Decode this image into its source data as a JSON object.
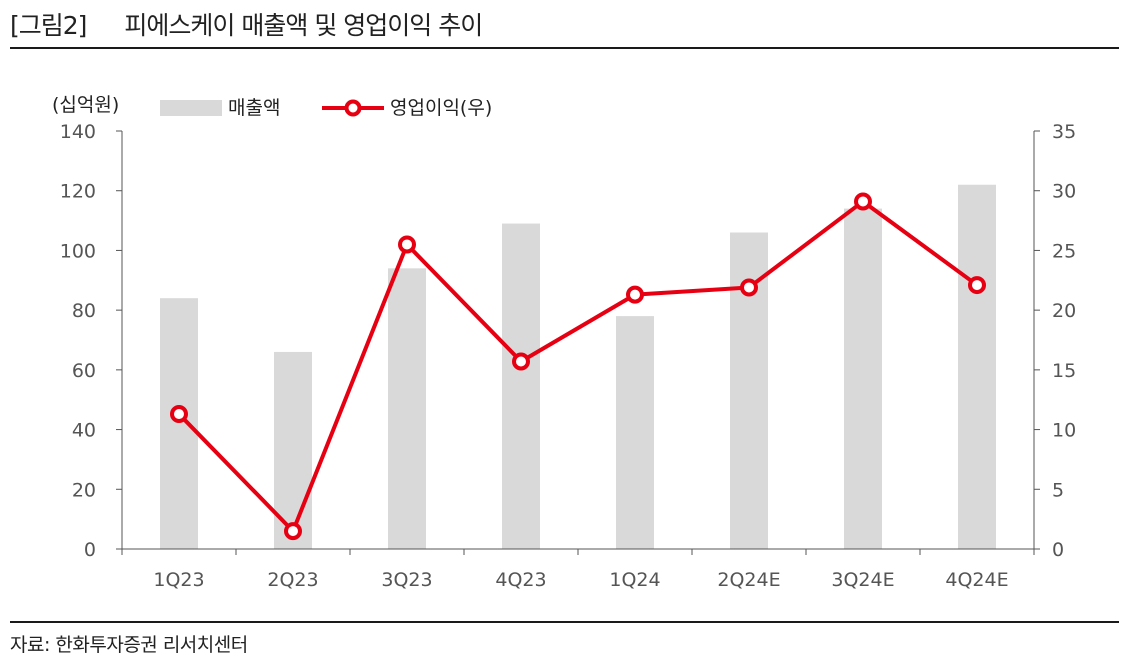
{
  "header": {
    "fig_tag": "[그림2]",
    "title": "피에스케이 매출액 및 영업이익 추이"
  },
  "source": "자료: 한화투자증권 리서치센터",
  "colors": {
    "bar": "#d9d9d9",
    "line": "#e60012",
    "axis": "#555555",
    "rule": "#1a1a1a"
  },
  "chart_data": {
    "type": "bar",
    "categories": [
      "1Q23",
      "2Q23",
      "3Q23",
      "4Q23",
      "1Q24",
      "2Q24E",
      "3Q24E",
      "4Q24E"
    ],
    "series": [
      {
        "name": "매출액",
        "type": "bar",
        "axis": "left",
        "values": [
          84,
          66,
          94,
          109,
          78,
          106,
          114,
          122
        ]
      },
      {
        "name": "영업이익(우)",
        "type": "line",
        "axis": "right",
        "values": [
          11.3,
          1.5,
          25.5,
          15.7,
          21.3,
          21.9,
          29.1,
          22.1
        ]
      }
    ],
    "y_left": {
      "unit": "(십억원)",
      "range": [
        0,
        140
      ],
      "ticks": [
        "0",
        "20",
        "40",
        "60",
        "80",
        "100",
        "120",
        "140"
      ]
    },
    "y_right": {
      "range": [
        0,
        35
      ],
      "ticks": [
        "0",
        "5",
        "10",
        "15",
        "20",
        "25",
        "30",
        "35"
      ]
    },
    "grid": false,
    "legend": "top-left"
  }
}
